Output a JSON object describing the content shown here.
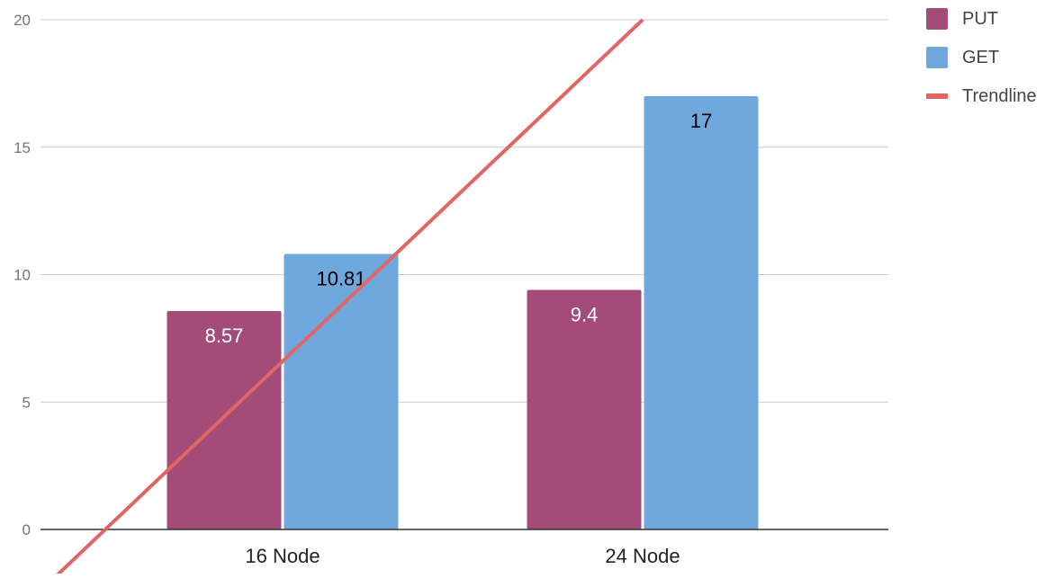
{
  "chart_data": {
    "type": "bar",
    "categories": [
      "16 Node",
      "24 Node"
    ],
    "series": [
      {
        "name": "PUT",
        "values": [
          8.57,
          9.4
        ],
        "color": "#a34c77",
        "label_color": "#ffffff"
      },
      {
        "name": "GET",
        "values": [
          10.81,
          17
        ],
        "color": "#6fa8dc",
        "label_color": "#000000"
      }
    ],
    "data_labels": [
      [
        "8.57",
        "9.4"
      ],
      [
        "10.81",
        "17"
      ]
    ],
    "trendline": {
      "name": "Trendline",
      "color": "#e06666",
      "points": [
        [
          0.0,
          6.6
        ],
        [
          1.0,
          20.0
        ]
      ]
    },
    "y_ticks": [
      "0",
      "5",
      "10",
      "15",
      "20"
    ],
    "ylim": [
      0,
      20
    ],
    "grid": true,
    "legend_position": "right"
  }
}
